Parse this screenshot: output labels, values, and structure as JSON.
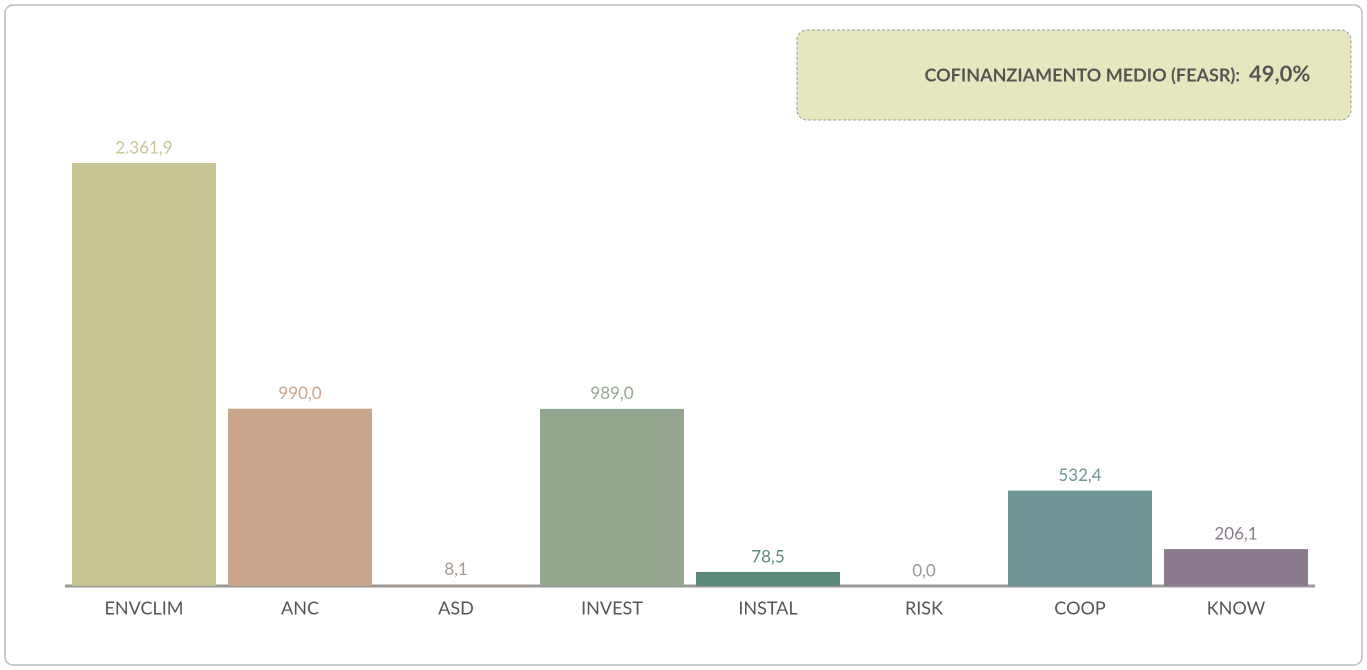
{
  "chart_data": {
    "type": "bar",
    "categories": [
      "ENVCLIM",
      "ANC",
      "ASD",
      "INVEST",
      "INSTAL",
      "RISK",
      "COOP",
      "KNOW"
    ],
    "values": [
      2361.9,
      990.0,
      8.1,
      989.0,
      78.5,
      0.0,
      532.4,
      206.1
    ],
    "value_labels": [
      "2.361,9",
      "990,0",
      "8,1",
      "989,0",
      "78,5",
      "0,0",
      "532,4",
      "206,1"
    ],
    "colors": [
      "#c7c593",
      "#c9a58c",
      "#a8998c",
      "#95a690",
      "#5b8a7a",
      "#9a9a9a",
      "#6f9494",
      "#8a7a8c"
    ],
    "annotation": {
      "label": "COFINANZIAMENTO MEDIO (FEASR):",
      "value": "49,0%"
    }
  }
}
